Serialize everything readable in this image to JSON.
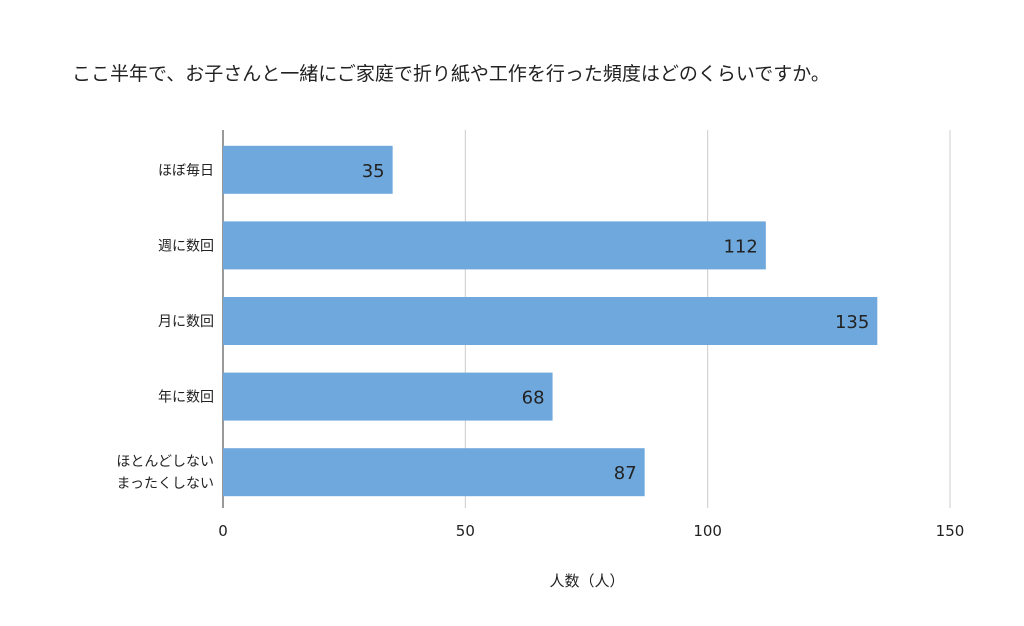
{
  "chart_data": {
    "type": "bar",
    "orientation": "horizontal",
    "title": "ここ半年で、お子さんと一緒にご家庭で折り紙や工作を行った頻度はどのくらいですか。",
    "categories": [
      "ほぼ毎日",
      "週に数回",
      "月に数回",
      "年に数回",
      "ほとんどしない\nまったくしない"
    ],
    "values": [
      35,
      112,
      135,
      68,
      87
    ],
    "xlabel": "人数（人）",
    "ylabel": "",
    "xlim": [
      0,
      150
    ],
    "xticks": [
      0,
      50,
      100,
      150
    ],
    "grid": true,
    "bar_color": "#6fa8dc",
    "grid_color": "#cccccc",
    "legend": "none"
  }
}
